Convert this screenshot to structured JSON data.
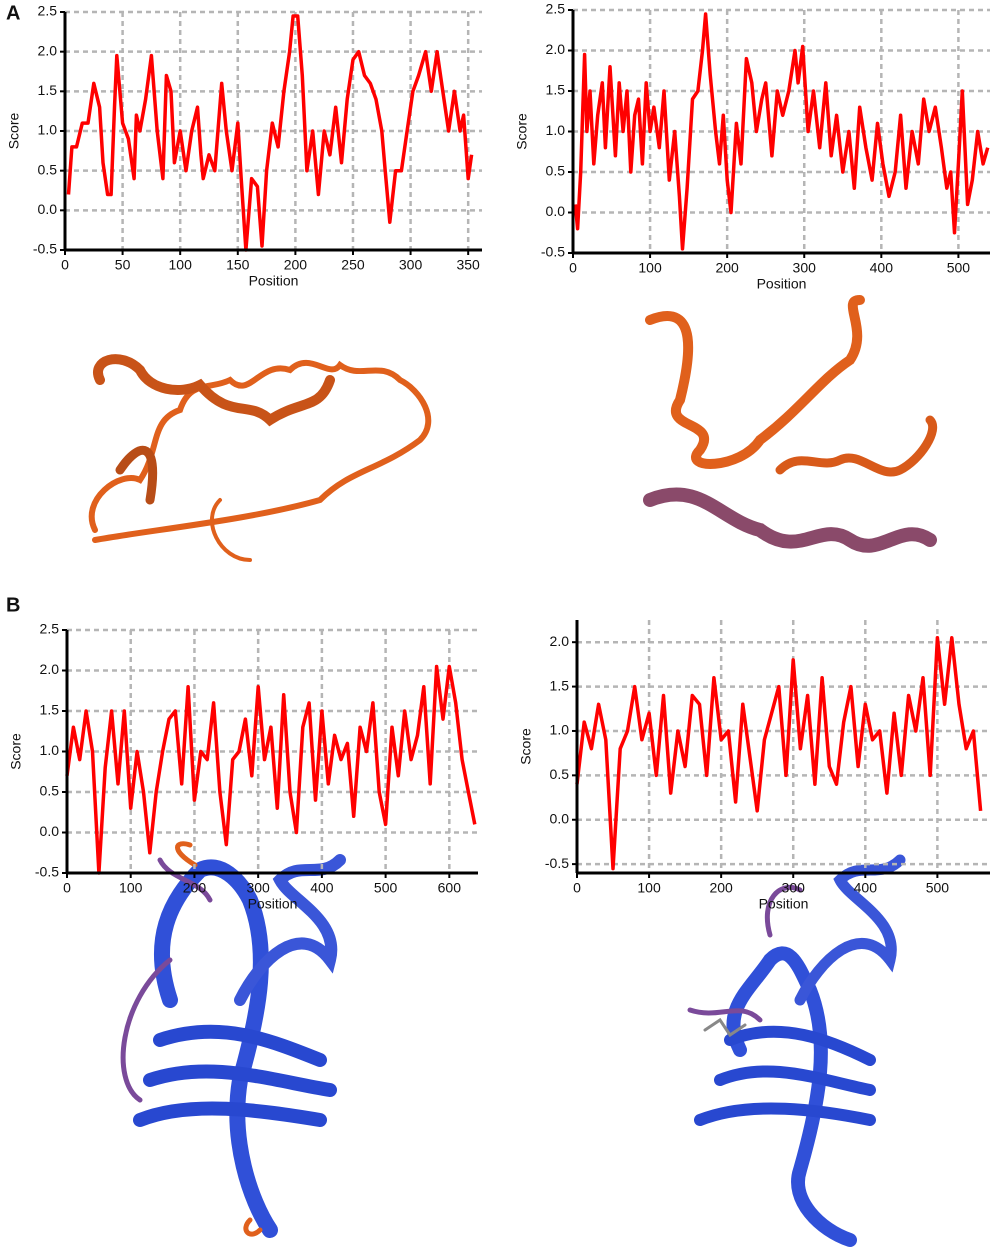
{
  "panels": [
    "A",
    "B"
  ],
  "chart_data": [
    {
      "type": "line",
      "x_label": "Position",
      "y_label": "Score",
      "color": "#ff0000",
      "grid": true,
      "xlim": [
        0,
        362
      ],
      "ylim": [
        -0.5,
        2.5
      ],
      "xticks": [
        0,
        50,
        100,
        150,
        200,
        250,
        300,
        350
      ],
      "yticks": [
        -0.5,
        {
          "value": 0,
          "label": "0.0"
        },
        0.5,
        {
          "value": 1,
          "label": "1.0"
        },
        1.5,
        {
          "value": 2,
          "label": "2.0"
        },
        2.5
      ],
      "x": [
        3,
        6,
        10,
        15,
        20,
        25,
        30,
        33,
        37,
        40,
        43,
        45,
        50,
        55,
        60,
        62,
        65,
        70,
        75,
        80,
        85,
        88,
        92,
        95,
        100,
        105,
        110,
        115,
        118,
        120,
        125,
        130,
        136,
        140,
        145,
        150,
        153,
        157,
        162,
        167,
        171,
        175,
        180,
        185,
        190,
        195,
        198,
        202,
        206,
        210,
        215,
        220,
        225,
        230,
        235,
        240,
        245,
        250,
        255,
        260,
        265,
        270,
        275,
        278,
        282,
        287,
        292,
        297,
        302,
        307,
        313,
        318,
        323,
        328,
        333,
        338,
        343,
        346,
        350,
        353
      ],
      "values": [
        0.2,
        0.8,
        0.8,
        1.1,
        1.1,
        1.6,
        1.3,
        0.6,
        0.2,
        0.2,
        1.3,
        1.95,
        1.1,
        0.9,
        0.4,
        1.2,
        1.0,
        1.4,
        1.95,
        1.0,
        0.4,
        1.7,
        1.5,
        0.6,
        1.0,
        0.5,
        1.0,
        1.3,
        0.7,
        0.4,
        0.7,
        0.5,
        1.6,
        1.0,
        0.5,
        1.1,
        0.4,
        -0.5,
        0.4,
        0.3,
        -0.45,
        0.5,
        1.1,
        0.8,
        1.5,
        2.0,
        2.45,
        2.45,
        1.7,
        0.5,
        1.0,
        0.2,
        1.0,
        0.7,
        1.3,
        0.6,
        1.4,
        1.9,
        2.0,
        1.7,
        1.6,
        1.4,
        1.0,
        0.5,
        -0.15,
        0.5,
        0.5,
        1.0,
        1.5,
        1.7,
        2.0,
        1.5,
        2.0,
        1.5,
        1.0,
        1.5,
        1.0,
        1.2,
        0.4,
        0.7
      ]
    },
    {
      "type": "line",
      "x_label": "Position",
      "y_label": "Score",
      "color": "#ff0000",
      "grid": true,
      "xlim": [
        0,
        541
      ],
      "ylim": [
        -0.5,
        2.5
      ],
      "xticks": [
        0,
        100,
        200,
        300,
        400,
        500
      ],
      "yticks": [
        -0.5,
        {
          "value": 0,
          "label": "0.0"
        },
        0.5,
        {
          "value": 1,
          "label": "1.0"
        },
        1.5,
        {
          "value": 2,
          "label": "2.0"
        },
        2.5
      ],
      "x": [
        3,
        6,
        10,
        15,
        18,
        22,
        27,
        32,
        38,
        42,
        48,
        55,
        60,
        65,
        70,
        75,
        80,
        85,
        90,
        95,
        100,
        105,
        112,
        118,
        125,
        132,
        138,
        142,
        148,
        155,
        162,
        168,
        172,
        178,
        185,
        190,
        195,
        200,
        205,
        212,
        218,
        225,
        232,
        238,
        245,
        250,
        258,
        265,
        272,
        280,
        288,
        292,
        298,
        305,
        312,
        320,
        328,
        335,
        342,
        350,
        358,
        365,
        372,
        380,
        388,
        395,
        402,
        410,
        418,
        425,
        432,
        440,
        448,
        455,
        462,
        470,
        478,
        485,
        490,
        495,
        500,
        505,
        512,
        518,
        525,
        532,
        538
      ],
      "values": [
        0.1,
        -0.2,
        0.5,
        1.95,
        1.0,
        1.5,
        0.6,
        1.2,
        1.6,
        0.8,
        1.8,
        0.7,
        1.6,
        1.0,
        1.5,
        0.5,
        1.2,
        1.4,
        0.6,
        1.6,
        1.0,
        1.3,
        0.8,
        1.5,
        0.4,
        1.0,
        0.2,
        -0.45,
        0.3,
        1.4,
        1.5,
        2.0,
        2.45,
        1.7,
        1.0,
        0.6,
        1.2,
        0.4,
        0.0,
        1.1,
        0.6,
        1.9,
        1.6,
        1.0,
        1.4,
        1.6,
        0.7,
        1.5,
        1.2,
        1.5,
        2.0,
        1.6,
        2.05,
        1.0,
        1.5,
        0.8,
        1.6,
        0.7,
        1.2,
        0.5,
        1.0,
        0.3,
        1.3,
        0.8,
        0.4,
        1.1,
        0.6,
        0.2,
        0.5,
        1.2,
        0.3,
        1.0,
        0.6,
        1.4,
        1.0,
        1.3,
        0.8,
        0.3,
        0.5,
        -0.25,
        0.6,
        1.5,
        0.1,
        0.4,
        1.0,
        0.6,
        0.8
      ]
    },
    {
      "type": "line",
      "x_label": "Position",
      "y_label": "Score",
      "color": "#ff0000",
      "grid": true,
      "xlim": [
        0,
        645
      ],
      "ylim": [
        -0.5,
        2.5
      ],
      "xticks": [
        0,
        100,
        200,
        300,
        400,
        500,
        600
      ],
      "yticks": [
        -0.5,
        {
          "value": 0,
          "label": "0.0"
        },
        0.5,
        {
          "value": 1,
          "label": "1.0"
        },
        1.5,
        {
          "value": 2,
          "label": "2.0"
        },
        2.5
      ],
      "x": [
        0,
        10,
        20,
        30,
        40,
        50,
        60,
        70,
        80,
        90,
        100,
        110,
        120,
        130,
        140,
        150,
        160,
        170,
        180,
        190,
        200,
        210,
        220,
        230,
        240,
        250,
        260,
        270,
        280,
        290,
        300,
        310,
        320,
        330,
        340,
        350,
        360,
        370,
        380,
        390,
        400,
        410,
        420,
        430,
        440,
        450,
        460,
        470,
        480,
        490,
        500,
        510,
        520,
        530,
        540,
        550,
        560,
        570,
        580,
        590,
        600,
        610,
        620,
        630,
        640
      ],
      "values": [
        0.7,
        1.3,
        0.9,
        1.5,
        1.0,
        -0.5,
        0.8,
        1.5,
        0.6,
        1.5,
        0.3,
        1.0,
        0.5,
        -0.25,
        0.5,
        1.0,
        1.4,
        1.5,
        0.6,
        1.8,
        0.4,
        1.0,
        0.9,
        1.6,
        0.5,
        -0.15,
        0.9,
        1.0,
        1.4,
        0.7,
        1.8,
        0.9,
        1.3,
        0.3,
        1.7,
        0.5,
        0.0,
        1.3,
        1.6,
        0.4,
        1.5,
        0.6,
        1.2,
        0.9,
        1.1,
        0.2,
        1.3,
        1.0,
        1.6,
        0.5,
        0.1,
        1.3,
        0.7,
        1.5,
        0.9,
        1.2,
        1.8,
        0.6,
        2.05,
        1.4,
        2.05,
        1.6,
        0.9,
        0.5,
        0.1
      ]
    },
    {
      "type": "line",
      "x_label": "Position",
      "y_label": "Score",
      "color": "#ff0000",
      "grid": true,
      "xlim": [
        0,
        573
      ],
      "ylim": [
        -0.6,
        2.25
      ],
      "xticks": [
        0,
        100,
        200,
        300,
        400,
        500
      ],
      "yticks": [
        -0.5,
        {
          "value": 0,
          "label": "0.0"
        },
        0.5,
        {
          "value": 1,
          "label": "1.0"
        },
        1.5,
        {
          "value": 2,
          "label": "2.0"
        }
      ],
      "x": [
        0,
        10,
        20,
        30,
        40,
        50,
        60,
        70,
        80,
        90,
        100,
        110,
        120,
        130,
        140,
        150,
        160,
        170,
        180,
        190,
        200,
        210,
        220,
        230,
        240,
        250,
        260,
        270,
        280,
        290,
        300,
        310,
        320,
        330,
        340,
        350,
        360,
        370,
        380,
        390,
        400,
        410,
        420,
        430,
        440,
        450,
        460,
        470,
        480,
        490,
        500,
        510,
        520,
        530,
        540,
        550,
        560
      ],
      "values": [
        0.4,
        1.1,
        0.8,
        1.3,
        0.9,
        -0.55,
        0.8,
        1.0,
        1.5,
        0.9,
        1.2,
        0.5,
        1.4,
        0.3,
        1.0,
        0.6,
        1.4,
        1.3,
        0.5,
        1.6,
        0.9,
        1.0,
        0.2,
        1.3,
        0.7,
        0.1,
        0.9,
        1.2,
        1.5,
        0.5,
        1.8,
        0.8,
        1.4,
        0.4,
        1.6,
        0.6,
        0.4,
        1.1,
        1.5,
        0.6,
        1.3,
        0.9,
        1.0,
        0.3,
        1.2,
        0.5,
        1.4,
        1.0,
        1.6,
        0.5,
        2.05,
        1.3,
        2.05,
        1.3,
        0.8,
        1.0,
        0.1
      ]
    }
  ]
}
